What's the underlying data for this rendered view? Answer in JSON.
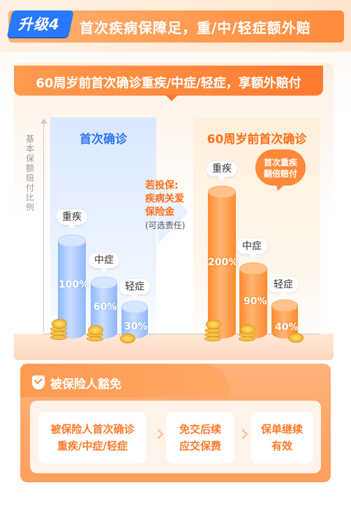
{
  "header": {
    "badge": "升级4",
    "title": "首次疾病保障足，重/中/轻症额外赔"
  },
  "banner": {
    "text": "60周岁前首次确诊重疾/中症/轻症，享额外赔付"
  },
  "axis": {
    "ylabel": "基本保额赔付比例"
  },
  "left_panel": {
    "title": "首次确诊",
    "bars": [
      {
        "label": "重疾",
        "value": "100%"
      },
      {
        "label": "中症",
        "value": "60%"
      },
      {
        "label": "轻症",
        "value": "30%"
      }
    ]
  },
  "middle_note": {
    "line1": "若投保:",
    "line2": "疾病关爱",
    "line3": "保险金",
    "line4": "(可选责任)"
  },
  "right_panel": {
    "title": "60周岁前首次确诊",
    "bubble_line1": "首次重疾",
    "bubble_line2": "翻倍赔付",
    "bars": [
      {
        "label": "重疾",
        "value": "200%"
      },
      {
        "label": "中症",
        "value": "90%"
      },
      {
        "label": "轻症",
        "value": "40%"
      }
    ]
  },
  "waiver": {
    "title": "被保险人豁免",
    "steps": [
      {
        "line1": "被保险人首次确诊",
        "line2": "重疾/中症/轻症"
      },
      {
        "line1": "免交后续",
        "line2": "应交保费"
      },
      {
        "line1": "保单继续",
        "line2": "有效"
      }
    ]
  },
  "colors": {
    "accent_orange": "#ff7a30",
    "accent_blue": "#2f74f2"
  }
}
